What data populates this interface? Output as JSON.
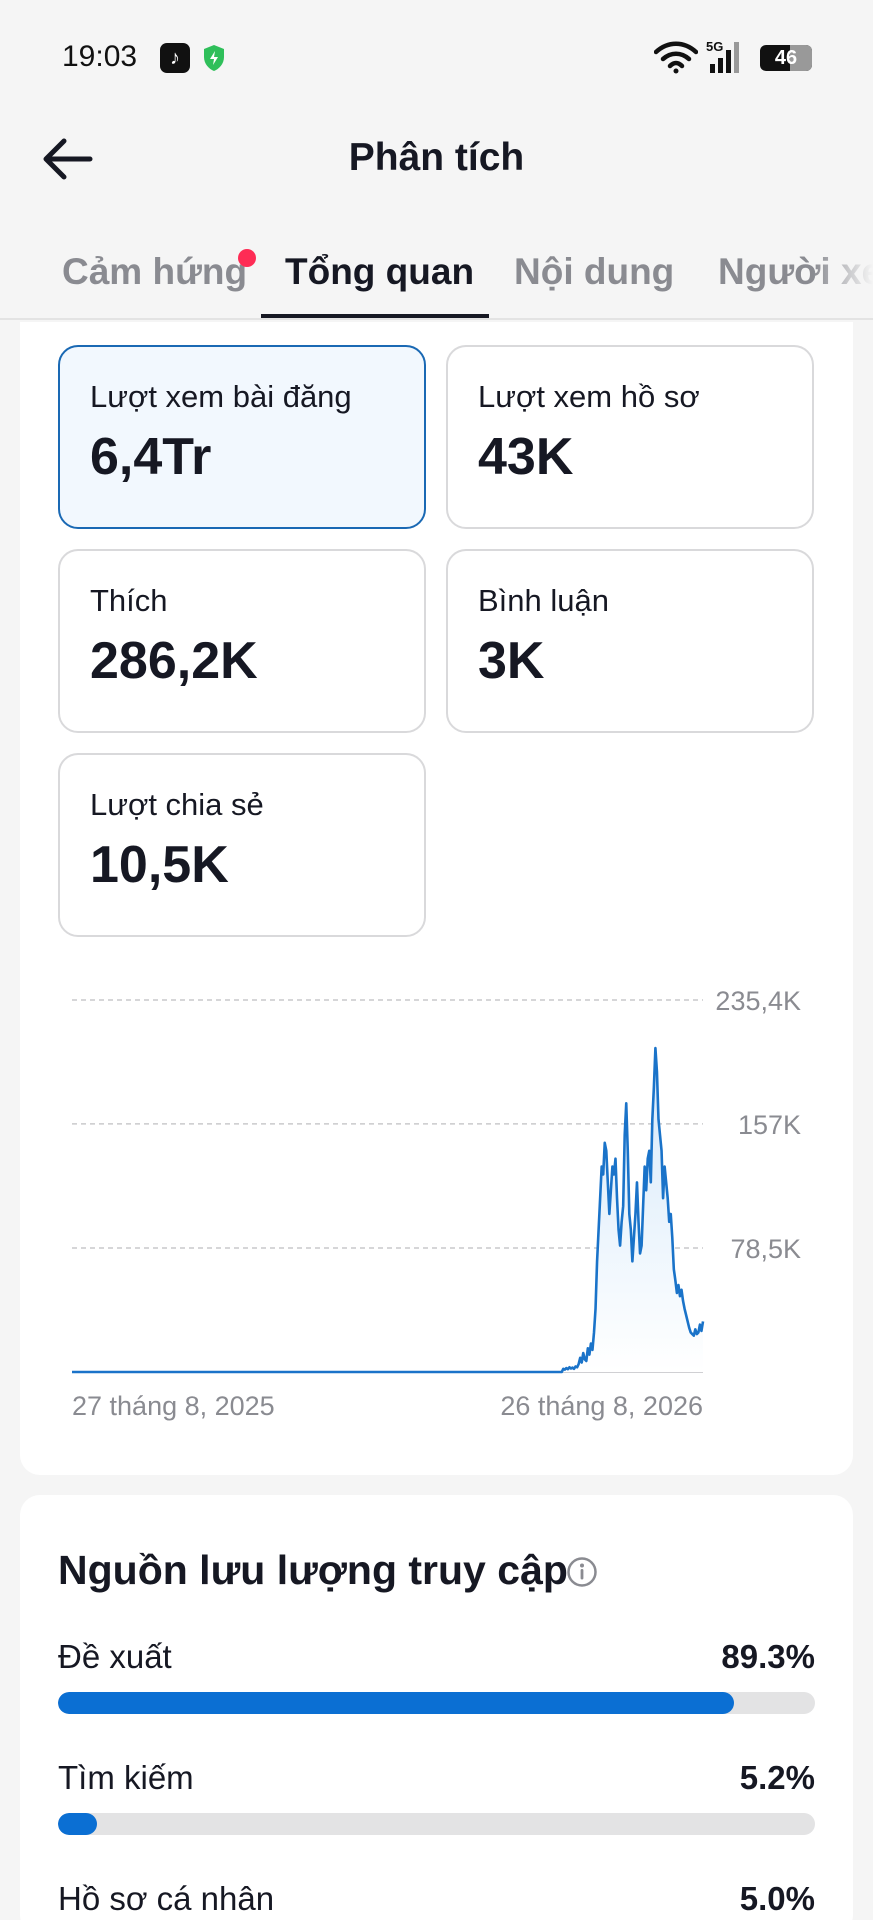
{
  "status_bar": {
    "time": "19:03",
    "network": "5G",
    "battery": "46",
    "icons": [
      "tiktok-icon",
      "shield-icon",
      "wifi-icon",
      "signal-icon",
      "battery-icon"
    ]
  },
  "header": {
    "title": "Phân tích",
    "back_icon": "arrow-left-icon"
  },
  "tabs": [
    {
      "label": "Cảm hứng",
      "active": false,
      "has_dot": true
    },
    {
      "label": "Tổng quan",
      "active": true
    },
    {
      "label": "Nội dung",
      "active": false
    },
    {
      "label": "Người xem",
      "active": false
    }
  ],
  "metrics": [
    {
      "label": "Lượt xem bài đăng",
      "value": "6,4Tr",
      "selected": true
    },
    {
      "label": "Lượt xem hồ sơ",
      "value": "43K",
      "selected": false
    },
    {
      "label": "Thích",
      "value": "286,2K",
      "selected": false
    },
    {
      "label": "Bình luận",
      "value": "3K",
      "selected": false
    },
    {
      "label": "Lượt chia sẻ",
      "value": "10,5K",
      "selected": false
    }
  ],
  "chart_data": {
    "type": "area",
    "x_labels": [
      "27 tháng 8, 2025",
      "26 tháng 8, 2026"
    ],
    "y_tick_labels": [
      "235,4K",
      "157K",
      "78,5K"
    ],
    "y_ticks": [
      235400,
      157000,
      78500
    ],
    "ylim": [
      0,
      235400
    ],
    "grid": true,
    "color": "#1a73c9",
    "series": [
      {
        "values": [
          0,
          0,
          0,
          0,
          0,
          0,
          0,
          0,
          0,
          0,
          0,
          0,
          0,
          0,
          0,
          0,
          0,
          0,
          0,
          0,
          0,
          0,
          0,
          0,
          0,
          0,
          0,
          0,
          0,
          0,
          0,
          0,
          0,
          0,
          0,
          0,
          0,
          0,
          0,
          0,
          0,
          0,
          0,
          0,
          0,
          0,
          0,
          0,
          0,
          0,
          0,
          0,
          0,
          0,
          0,
          0,
          0,
          0,
          0,
          0,
          0,
          0,
          0,
          0,
          0,
          0,
          0,
          0,
          0,
          0,
          0,
          0,
          0,
          0,
          0,
          0,
          0,
          0,
          0,
          0,
          0,
          0,
          0,
          0,
          0,
          0,
          0,
          0,
          0,
          0,
          0,
          0,
          0,
          0,
          0,
          0,
          0,
          0,
          0,
          0,
          0,
          0,
          0,
          0,
          0,
          0,
          0,
          0,
          0,
          0,
          0,
          0,
          0,
          0,
          0,
          0,
          0,
          0,
          0,
          0,
          0,
          0,
          0,
          0,
          0,
          0,
          0,
          0,
          0,
          0,
          0,
          0,
          0,
          0,
          0,
          0,
          0,
          0,
          0,
          0,
          0,
          0,
          0,
          0,
          0,
          0,
          0,
          0,
          0,
          0,
          0,
          0,
          0,
          0,
          0,
          0,
          0,
          0,
          0,
          0,
          0,
          0,
          0,
          0,
          0,
          0,
          0,
          0,
          0,
          0,
          0,
          0,
          0,
          0,
          0,
          0,
          0,
          0,
          0,
          0,
          0,
          0,
          0,
          0,
          0,
          0,
          0,
          0,
          0,
          0,
          0,
          0,
          0,
          0,
          0,
          0,
          0,
          0,
          0,
          0,
          0,
          0,
          0,
          0,
          0,
          0,
          0,
          0,
          0,
          0,
          0,
          0,
          0,
          0,
          0,
          0,
          0,
          0,
          0,
          0,
          0,
          0,
          0,
          0,
          0,
          0,
          0,
          0,
          0,
          0,
          0,
          0,
          0,
          0,
          0,
          0,
          0,
          0,
          0,
          0,
          0,
          0,
          0,
          0,
          0,
          0,
          0,
          0,
          0,
          0,
          0,
          0,
          0,
          0,
          0,
          0,
          0,
          0,
          0,
          0,
          0,
          0,
          0,
          0,
          0,
          0,
          0,
          0,
          0,
          0,
          0,
          0,
          0,
          0,
          0,
          0,
          0,
          0,
          0,
          0,
          0,
          0,
          0,
          0,
          0,
          0,
          0,
          0,
          0,
          0,
          0,
          0,
          0,
          0,
          0,
          0,
          0,
          0,
          0,
          0,
          0,
          0,
          0,
          0,
          0,
          0,
          0,
          0,
          0,
          0,
          0,
          0,
          0,
          0,
          0,
          0,
          0,
          0,
          0,
          0,
          2000,
          1500,
          2500,
          1800,
          3000,
          2200,
          2800,
          2000,
          3500,
          3000,
          5000,
          9000,
          6000,
          12000,
          8000,
          7000,
          15000,
          11000,
          18000,
          14000,
          25000,
          40000,
          70000,
          90000,
          110000,
          130000,
          125000,
          145000,
          140000,
          120000,
          100000,
          115000,
          130000,
          125000,
          135000,
          110000,
          90000,
          80000,
          95000,
          105000,
          150000,
          170000,
          140000,
          100000,
          90000,
          70000,
          85000,
          100000,
          120000,
          95000,
          75000,
          80000,
          105000,
          130000,
          115000,
          135000,
          140000,
          120000,
          160000,
          180000,
          205000,
          190000,
          160000,
          150000,
          140000,
          110000,
          130000,
          120000,
          110000,
          95000,
          100000,
          85000,
          65000,
          58000,
          50000,
          55000,
          48000,
          52000,
          45000,
          40000,
          36000,
          32000,
          28000,
          25000,
          24000,
          23000,
          27000,
          24000,
          25000,
          30000,
          26000,
          32000
        ]
      }
    ]
  },
  "traffic": {
    "title": "Nguồn lưu lượng truy cập",
    "info_icon": "info-icon",
    "sources": [
      {
        "label": "Đề xuất",
        "percent": "89.3%",
        "value": 89.3
      },
      {
        "label": "Tìm kiếm",
        "percent": "5.2%",
        "value": 5.2
      },
      {
        "label": "Hồ sơ cá nhân",
        "percent": "5.0%",
        "value": 5.0
      }
    ]
  }
}
